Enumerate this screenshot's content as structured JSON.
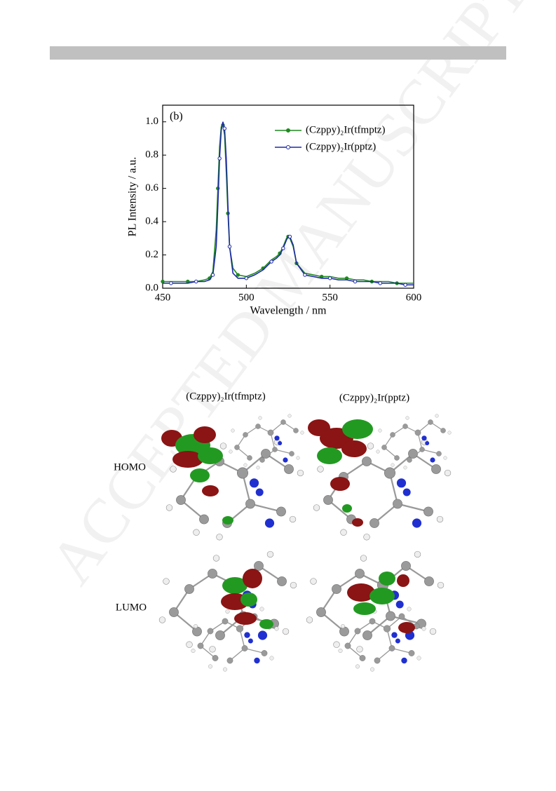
{
  "watermark": "ACCEPTED MANUSCRIPT",
  "chart_data": {
    "type": "line",
    "panel_label": "(b)",
    "x_label": "Wavelength / nm",
    "y_label": "PL Intensity / a.u.",
    "xlim": [
      450,
      600
    ],
    "xticks": [
      450,
      500,
      550,
      600
    ],
    "ylim": [
      0,
      1.1
    ],
    "yticks": [
      {
        "value": 0,
        "label": "0.0"
      },
      0.2,
      0.4,
      0.6,
      0.8,
      {
        "value": 1,
        "label": "1.0"
      }
    ],
    "legend": "upper right",
    "x": [
      450,
      455,
      460,
      465,
      470,
      475,
      478,
      480,
      482,
      483,
      484,
      485,
      486,
      487,
      488,
      489,
      490,
      492,
      495,
      500,
      505,
      510,
      515,
      518,
      520,
      522,
      524,
      525,
      526,
      528,
      530,
      535,
      540,
      545,
      550,
      555,
      560,
      565,
      570,
      575,
      580,
      585,
      590,
      595,
      600
    ],
    "series": [
      {
        "name": "(Czppy)₂Ir(tfmptz)",
        "color": "#1e8a1e",
        "marker": "filled",
        "values": [
          0.04,
          0.04,
          0.04,
          0.04,
          0.04,
          0.05,
          0.06,
          0.1,
          0.35,
          0.6,
          0.85,
          0.97,
          0.98,
          0.92,
          0.7,
          0.45,
          0.25,
          0.12,
          0.08,
          0.07,
          0.09,
          0.12,
          0.17,
          0.19,
          0.21,
          0.25,
          0.3,
          0.31,
          0.3,
          0.25,
          0.15,
          0.09,
          0.08,
          0.07,
          0.07,
          0.06,
          0.06,
          0.05,
          0.05,
          0.04,
          0.04,
          0.04,
          0.03,
          0.03,
          0.03
        ]
      },
      {
        "name": "(Czppy)₂Ir(pptz)",
        "color": "#1f2aa8",
        "marker": "open",
        "values": [
          0.03,
          0.03,
          0.03,
          0.03,
          0.04,
          0.04,
          0.05,
          0.08,
          0.25,
          0.5,
          0.78,
          0.95,
          1.0,
          0.96,
          0.78,
          0.5,
          0.25,
          0.09,
          0.06,
          0.06,
          0.08,
          0.11,
          0.16,
          0.18,
          0.2,
          0.24,
          0.29,
          0.31,
          0.31,
          0.26,
          0.15,
          0.08,
          0.07,
          0.06,
          0.06,
          0.05,
          0.05,
          0.04,
          0.04,
          0.04,
          0.03,
          0.03,
          0.03,
          0.02,
          0.02
        ]
      }
    ]
  },
  "figure": {
    "columns": [
      "(Czppy)₂Ir(tfmptz)",
      "(Czppy)₂Ir(pptz)"
    ],
    "rows": [
      "HOMO",
      "LUMO"
    ]
  }
}
